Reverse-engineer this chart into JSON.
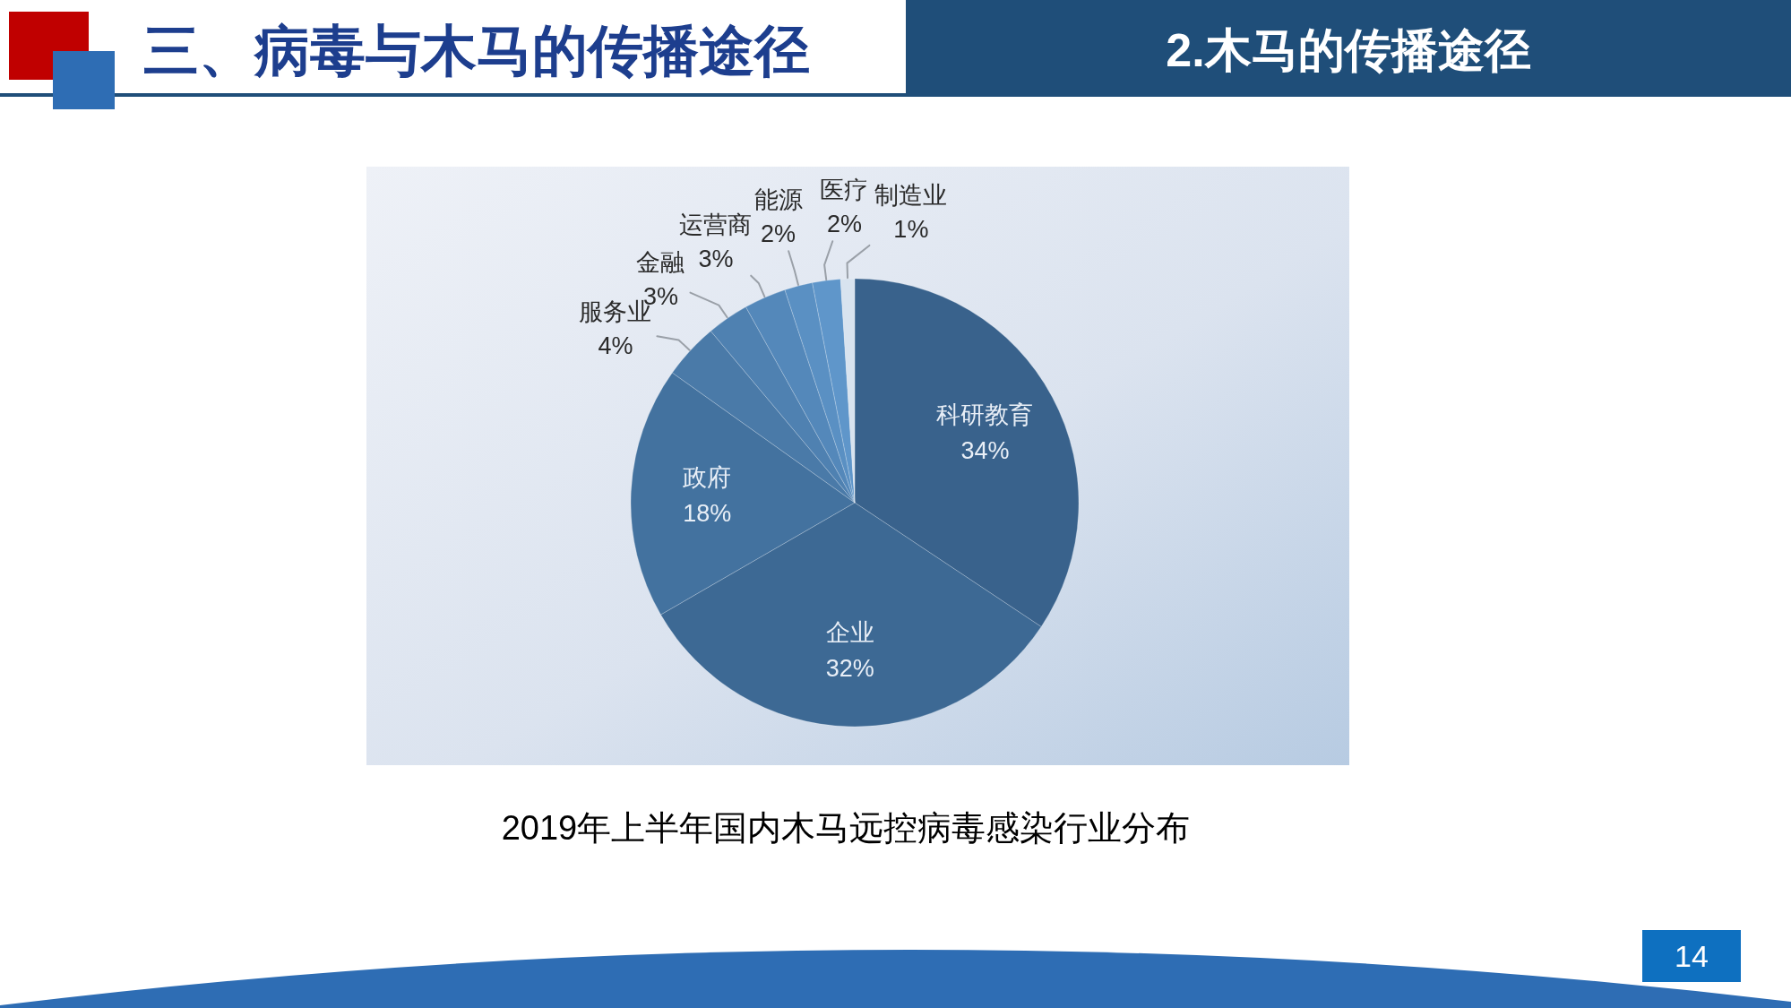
{
  "chart_data": {
    "type": "pie",
    "title": "三、病毒与木马的传播途径",
    "subtitle": "2.木马的传播途径",
    "categories": [
      "科研教育",
      "企业",
      "政府",
      "服务业",
      "金融",
      "运营商",
      "能源",
      "医疗",
      "制造业"
    ],
    "values": [
      34,
      32,
      18,
      4,
      3,
      3,
      2,
      2,
      1
    ],
    "value_labels": [
      "34%",
      "32%",
      "18%",
      "4%",
      "3%",
      "3%",
      "2%",
      "2%",
      "1%"
    ],
    "colors": [
      "#39628c",
      "#3d6994",
      "#43729f",
      "#4a7aa8",
      "#4f81b1",
      "#5488ba",
      "#5a90c3",
      "#5f96ca",
      "#d8e3ef"
    ],
    "annotations": [
      "2019年上半年国内木马远控病毒感染行业分布",
      "14"
    ]
  }
}
